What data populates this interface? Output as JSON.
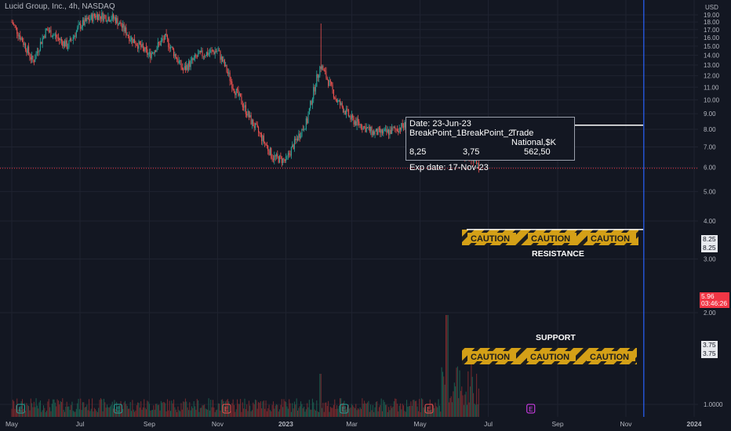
{
  "header": {
    "title": "Lucid Group, Inc., 4h, NASDAQ",
    "currency": "USD"
  },
  "info_box": {
    "date_line": "Date: 23-Jun-23",
    "headers": [
      "BreakPoint_1",
      "BreakPoint_2",
      "Trade National,$K"
    ],
    "values": [
      "8,25",
      "3,75",
      "562,50"
    ],
    "exp_line": "Exp date: 17-Nov-23"
  },
  "levels": {
    "resistance": {
      "label": "RESISTANCE",
      "price": 8.25,
      "tag_top": "8.25",
      "tag_bottom": "8.25",
      "banner": [
        "CAUTION",
        "CAUTION",
        "CAUTION"
      ]
    },
    "support": {
      "label": "SUPPORT",
      "price": 3.75,
      "tag_top": "3.75",
      "tag_bottom": "3.75",
      "banner": [
        "CAUTION",
        "CAUTION",
        "CAUTION"
      ]
    }
  },
  "last_price": {
    "value": 5.96,
    "label": "5.96",
    "countdown": "03:46:26"
  },
  "colors": {
    "background": "#131722",
    "up": "#26a69a",
    "down": "#ef5350",
    "volume_up": "#1b5e4f",
    "volume_down": "#7a2a2e",
    "level_line": "#ffffff",
    "expiry_line": "#2962ff",
    "caution_bg": "#d4a017",
    "caution_stripe": "#1e1e1e"
  },
  "chart_data": {
    "type": "candlestick",
    "symbol": "Lucid Group, Inc.",
    "interval": "4h",
    "exchange": "NASDAQ",
    "y_axis": {
      "scale": "log",
      "unit": "USD",
      "ticks": [
        19,
        18,
        17,
        16,
        15,
        14,
        13,
        12,
        11,
        10,
        9,
        8,
        7,
        6,
        5,
        4,
        3,
        2,
        1
      ],
      "tick_labels": [
        "19.00",
        "18.00",
        "17.00",
        "16.00",
        "15.00",
        "14.00",
        "13.00",
        "12.00",
        "11.00",
        "10.00",
        "9.00",
        "8.00",
        "7.00",
        "6.00",
        "5.00",
        "4.00",
        "3.00",
        "2.00",
        "1.0000"
      ]
    },
    "x_axis": {
      "tick_labels": [
        "May",
        "Jul",
        "Sep",
        "Nov",
        "2023",
        "Mar",
        "May",
        "Jul",
        "Sep",
        "Nov",
        "2024"
      ]
    },
    "price_path": [
      {
        "date": "2022-05",
        "close": 18.0
      },
      {
        "date": "2022-05-20",
        "close": 13.3
      },
      {
        "date": "2022-06",
        "close": 17.0
      },
      {
        "date": "2022-06-20",
        "close": 15.0
      },
      {
        "date": "2022-07",
        "close": 17.5
      },
      {
        "date": "2022-07-15",
        "close": 19.0
      },
      {
        "date": "2022-08",
        "close": 18.5
      },
      {
        "date": "2022-08-15",
        "close": 16.0
      },
      {
        "date": "2022-09",
        "close": 14.0
      },
      {
        "date": "2022-09-15",
        "close": 16.0
      },
      {
        "date": "2022-10",
        "close": 12.5
      },
      {
        "date": "2022-10-15",
        "close": 14.0
      },
      {
        "date": "2022-11",
        "close": 14.5
      },
      {
        "date": "2022-11-15",
        "close": 11.0
      },
      {
        "date": "2022-12",
        "close": 8.5
      },
      {
        "date": "2022-12-20",
        "close": 6.5
      },
      {
        "date": "2023-01",
        "close": 6.3
      },
      {
        "date": "2023-01-20",
        "close": 8.5
      },
      {
        "date": "2023-02",
        "close": 13.0
      },
      {
        "date": "2023-02-15",
        "close": 10.0
      },
      {
        "date": "2023-03",
        "close": 8.6
      },
      {
        "date": "2023-03-20",
        "close": 7.8
      },
      {
        "date": "2023-04",
        "close": 7.8
      },
      {
        "date": "2023-04-20",
        "close": 8.3
      },
      {
        "date": "2023-05",
        "close": 7.2
      },
      {
        "date": "2023-05-20",
        "close": 7.8
      },
      {
        "date": "2023-06",
        "close": 6.8
      },
      {
        "date": "2023-06-15",
        "close": 6.5
      },
      {
        "date": "2023-06-23",
        "close": 5.96
      }
    ],
    "spike_high": {
      "date": "2023-02",
      "high": 17.8
    },
    "horizontal_levels": [
      {
        "name": "RESISTANCE",
        "price": 8.25
      },
      {
        "name": "SUPPORT",
        "price": 3.75
      }
    ],
    "last_price": 5.96,
    "expiry_marker": "2023-11-17",
    "event_markers": [
      "E",
      "E",
      "E",
      "E",
      "E",
      "E",
      "E"
    ]
  }
}
